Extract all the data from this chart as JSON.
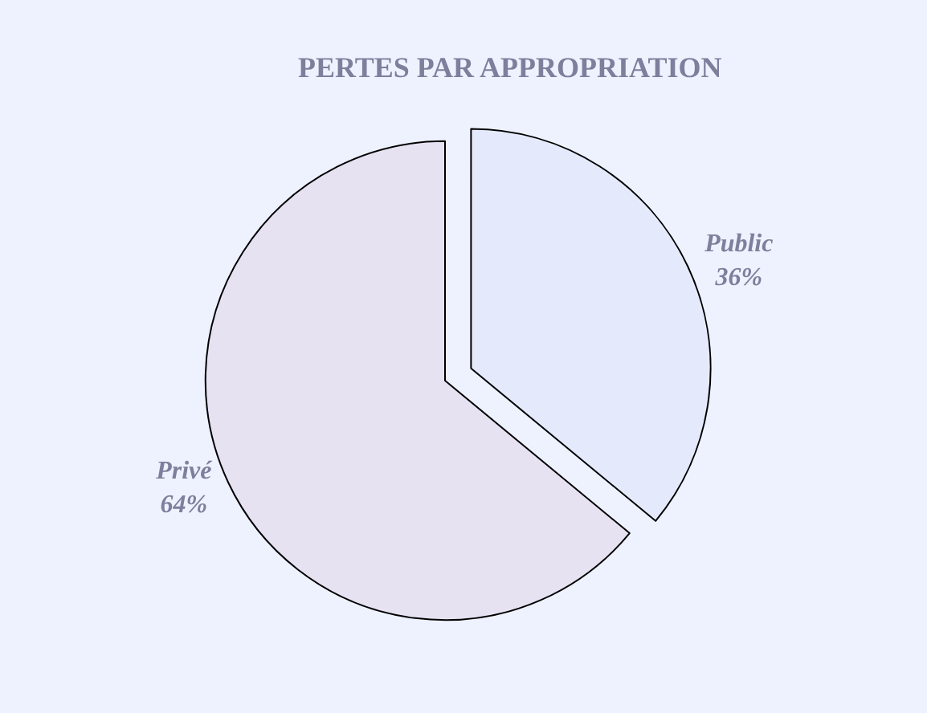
{
  "chart_data": {
    "type": "pie",
    "title": "PERTES PAR APPROPRIATION",
    "categories": [
      "Public",
      "Privé"
    ],
    "values": [
      36,
      64
    ],
    "value_labels": [
      "36%",
      "64%"
    ],
    "colors": [
      "#e4eafc",
      "#e6e2f2"
    ],
    "legend": false
  }
}
